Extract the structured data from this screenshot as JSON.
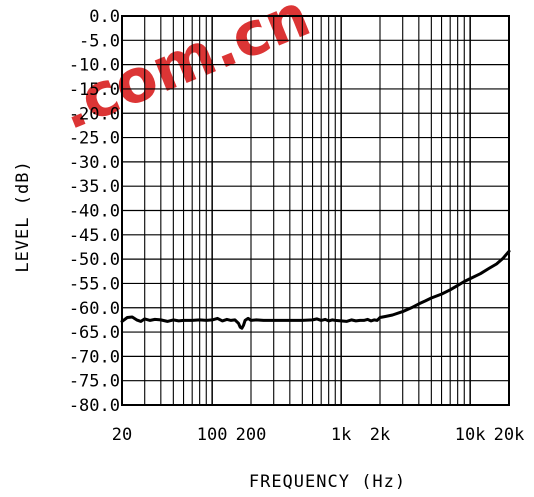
{
  "watermark": {
    "text": ".com.cn",
    "color": "#d92020"
  },
  "chart_data": {
    "type": "line",
    "title": "",
    "xlabel": "FREQUENCY (Hz)",
    "ylabel": "LEVEL (dB)",
    "x_scale": "log",
    "xlim": [
      20,
      20000
    ],
    "ylim": [
      -80,
      0
    ],
    "grid": true,
    "x_tick_labels": [
      {
        "value": 20,
        "label": "20"
      },
      {
        "value": 100,
        "label": "100"
      },
      {
        "value": 200,
        "label": "200"
      },
      {
        "value": 1000,
        "label": "1k"
      },
      {
        "value": 2000,
        "label": "2k"
      },
      {
        "value": 10000,
        "label": "10k"
      },
      {
        "value": 20000,
        "label": "20k"
      }
    ],
    "y_ticks": [
      0,
      -5,
      -10,
      -15,
      -20,
      -25,
      -30,
      -35,
      -40,
      -45,
      -50,
      -55,
      -60,
      -65,
      -70,
      -75,
      -80
    ],
    "y_tick_labels": [
      "0.0",
      "-5.0",
      "-10.0",
      "-15.0",
      "-20.0",
      "-25.0",
      "-30.0",
      "-35.0",
      "-40.0",
      "-45.0",
      "-50.0",
      "-55.0",
      "-60.0",
      "-65.0",
      "-70.0",
      "-75.0",
      "-80.0"
    ],
    "series": [
      {
        "color": "#000000",
        "x": [
          20,
          22,
          24,
          26,
          28,
          30,
          33,
          36,
          40,
          45,
          50,
          55,
          60,
          70,
          80,
          90,
          100,
          110,
          120,
          130,
          140,
          150,
          160,
          165,
          170,
          175,
          180,
          190,
          200,
          220,
          250,
          300,
          350,
          400,
          500,
          600,
          650,
          700,
          750,
          800,
          850,
          900,
          1000,
          1100,
          1200,
          1300,
          1400,
          1500,
          1600,
          1700,
          1800,
          1900,
          2000,
          2200,
          2500,
          3000,
          3500,
          4000,
          4500,
          5000,
          6000,
          7000,
          8000,
          9000,
          10000,
          12000,
          14000,
          16000,
          18000,
          20000
        ],
        "y": [
          -62.8,
          -62.0,
          -61.9,
          -62.5,
          -62.8,
          -62.3,
          -62.6,
          -62.4,
          -62.5,
          -62.8,
          -62.5,
          -62.7,
          -62.6,
          -62.6,
          -62.5,
          -62.6,
          -62.5,
          -62.2,
          -62.7,
          -62.4,
          -62.6,
          -62.5,
          -63.2,
          -64.0,
          -64.2,
          -63.6,
          -62.6,
          -62.2,
          -62.6,
          -62.5,
          -62.6,
          -62.6,
          -62.6,
          -62.6,
          -62.6,
          -62.5,
          -62.3,
          -62.6,
          -62.4,
          -62.7,
          -62.5,
          -62.6,
          -62.7,
          -62.8,
          -62.5,
          -62.7,
          -62.6,
          -62.6,
          -62.4,
          -62.7,
          -62.5,
          -62.6,
          -62.0,
          -61.8,
          -61.5,
          -60.8,
          -60.0,
          -59.2,
          -58.6,
          -58.0,
          -57.2,
          -56.3,
          -55.4,
          -54.6,
          -54.0,
          -53.0,
          -51.9,
          -51.0,
          -49.8,
          -48.4
        ]
      }
    ]
  }
}
